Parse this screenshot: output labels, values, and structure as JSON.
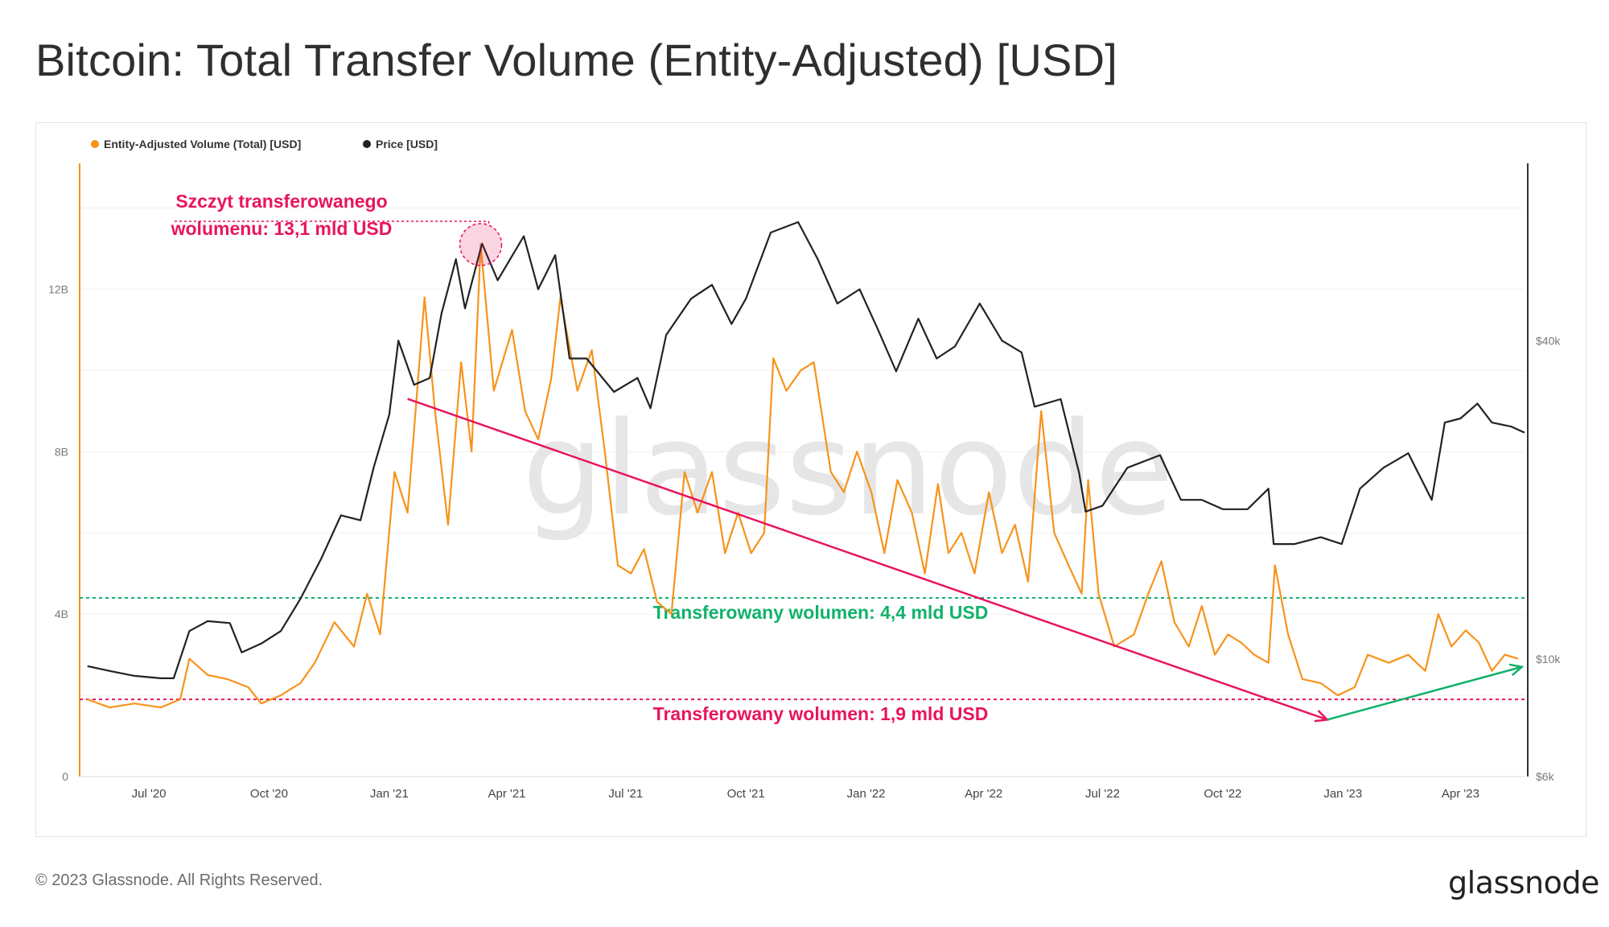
{
  "page": {
    "title": "Bitcoin: Total Transfer Volume (Entity-Adjusted) [USD]",
    "copyright": "© 2023 Glassnode. All Rights Reserved.",
    "logo": "glassnode",
    "watermark": "glassnode"
  },
  "chart_data": {
    "type": "line",
    "title": "Bitcoin: Total Transfer Volume (Entity-Adjusted) [USD]",
    "legend_position": "top-left",
    "grid": true,
    "x_ticks": [
      "Jul '20",
      "Oct '20",
      "Jan '21",
      "Apr '21",
      "Jul '21",
      "Oct '21",
      "Jan '22",
      "Apr '22",
      "Jul '22",
      "Oct '22",
      "Jan '23",
      "Apr '23"
    ],
    "xlim": [
      "2020-05-09",
      "2023-05-20"
    ],
    "y_left": {
      "ticks": [
        "0",
        "4B",
        "8B",
        "12B"
      ],
      "ylim": [
        0,
        15000000000
      ]
    },
    "y_right": {
      "ticks": [
        "$6k",
        "$10k",
        "$40k"
      ],
      "scale": "log",
      "ylim": [
        6000,
        85000
      ]
    },
    "colors": {
      "volume": "#f7931a",
      "price": "#222222",
      "accent_pink": "#e8155f",
      "accent_green": "#12b26b"
    },
    "series": [
      {
        "name": "Entity-Adjusted Volume (Total) [USD]",
        "axis": "left",
        "color": "#f7931a",
        "points": [
          [
            "2020-05-15",
            1900000000.0
          ],
          [
            "2020-06-01",
            1700000000.0
          ],
          [
            "2020-06-20",
            1800000000.0
          ],
          [
            "2020-07-10",
            1700000000.0
          ],
          [
            "2020-07-25",
            1900000000.0
          ],
          [
            "2020-08-01",
            2900000000.0
          ],
          [
            "2020-08-15",
            2500000000.0
          ],
          [
            "2020-08-30",
            2400000000.0
          ],
          [
            "2020-09-15",
            2200000000.0
          ],
          [
            "2020-09-25",
            1800000000.0
          ],
          [
            "2020-10-10",
            2000000000.0
          ],
          [
            "2020-10-25",
            2300000000.0
          ],
          [
            "2020-11-05",
            2800000000.0
          ],
          [
            "2020-11-20",
            3800000000.0
          ],
          [
            "2020-12-05",
            3200000000.0
          ],
          [
            "2020-12-15",
            4500000000.0
          ],
          [
            "2020-12-25",
            3500000000.0
          ],
          [
            "2021-01-05",
            7500000000.0
          ],
          [
            "2021-01-15",
            6500000000.0
          ],
          [
            "2021-01-28",
            11800000000.0
          ],
          [
            "2021-02-05",
            9000000000.0
          ],
          [
            "2021-02-15",
            6200000000.0
          ],
          [
            "2021-02-25",
            10200000000.0
          ],
          [
            "2021-03-05",
            8000000000.0
          ],
          [
            "2021-03-12",
            13100000000.0
          ],
          [
            "2021-03-22",
            9500000000.0
          ],
          [
            "2021-04-05",
            11000000000.0
          ],
          [
            "2021-04-15",
            9000000000.0
          ],
          [
            "2021-04-25",
            8300000000.0
          ],
          [
            "2021-05-05",
            9800000000.0
          ],
          [
            "2021-05-12",
            11800000000.0
          ],
          [
            "2021-05-25",
            9500000000.0
          ],
          [
            "2021-06-05",
            10500000000.0
          ],
          [
            "2021-06-15",
            8000000000.0
          ],
          [
            "2021-06-25",
            5200000000.0
          ],
          [
            "2021-07-05",
            5000000000.0
          ],
          [
            "2021-07-15",
            5600000000.0
          ],
          [
            "2021-07-25",
            4300000000.0
          ],
          [
            "2021-08-05",
            4000000000.0
          ],
          [
            "2021-08-15",
            7500000000.0
          ],
          [
            "2021-08-25",
            6500000000.0
          ],
          [
            "2021-09-05",
            7500000000.0
          ],
          [
            "2021-09-15",
            5500000000.0
          ],
          [
            "2021-09-25",
            6500000000.0
          ],
          [
            "2021-10-05",
            5500000000.0
          ],
          [
            "2021-10-15",
            6000000000.0
          ],
          [
            "2021-10-22",
            10300000000.0
          ],
          [
            "2021-11-01",
            9500000000.0
          ],
          [
            "2021-11-12",
            10000000000.0
          ],
          [
            "2021-11-22",
            10200000000.0
          ],
          [
            "2021-12-05",
            7500000000.0
          ],
          [
            "2021-12-15",
            7000000000.0
          ],
          [
            "2021-12-25",
            8000000000.0
          ],
          [
            "2022-01-05",
            7000000000.0
          ],
          [
            "2022-01-15",
            5500000000.0
          ],
          [
            "2022-01-25",
            7300000000.0
          ],
          [
            "2022-02-05",
            6500000000.0
          ],
          [
            "2022-02-15",
            5000000000.0
          ],
          [
            "2022-02-25",
            7200000000.0
          ],
          [
            "2022-03-05",
            5500000000.0
          ],
          [
            "2022-03-15",
            6000000000.0
          ],
          [
            "2022-03-25",
            5000000000.0
          ],
          [
            "2022-04-05",
            7000000000.0
          ],
          [
            "2022-04-15",
            5500000000.0
          ],
          [
            "2022-04-25",
            6200000000.0
          ],
          [
            "2022-05-05",
            4800000000.0
          ],
          [
            "2022-05-15",
            9000000000.0
          ],
          [
            "2022-05-25",
            6000000000.0
          ],
          [
            "2022-06-05",
            5200000000.0
          ],
          [
            "2022-06-15",
            4500000000.0
          ],
          [
            "2022-06-20",
            7300000000.0
          ],
          [
            "2022-06-28",
            4500000000.0
          ],
          [
            "2022-07-10",
            3200000000.0
          ],
          [
            "2022-07-25",
            3500000000.0
          ],
          [
            "2022-08-05",
            4500000000.0
          ],
          [
            "2022-08-15",
            5300000000.0
          ],
          [
            "2022-08-25",
            3800000000.0
          ],
          [
            "2022-09-05",
            3200000000.0
          ],
          [
            "2022-09-15",
            4200000000.0
          ],
          [
            "2022-09-25",
            3000000000.0
          ],
          [
            "2022-10-05",
            3500000000.0
          ],
          [
            "2022-10-15",
            3300000000.0
          ],
          [
            "2022-10-25",
            3000000000.0
          ],
          [
            "2022-11-05",
            2800000000.0
          ],
          [
            "2022-11-10",
            5200000000.0
          ],
          [
            "2022-11-20",
            3500000000.0
          ],
          [
            "2022-12-01",
            2400000000.0
          ],
          [
            "2022-12-15",
            2300000000.0
          ],
          [
            "2022-12-28",
            2000000000.0
          ],
          [
            "2023-01-10",
            2200000000.0
          ],
          [
            "2023-01-20",
            3000000000.0
          ],
          [
            "2023-02-05",
            2800000000.0
          ],
          [
            "2023-02-20",
            3000000000.0
          ],
          [
            "2023-03-05",
            2600000000.0
          ],
          [
            "2023-03-15",
            4000000000.0
          ],
          [
            "2023-03-25",
            3200000000.0
          ],
          [
            "2023-04-05",
            3600000000.0
          ],
          [
            "2023-04-15",
            3300000000.0
          ],
          [
            "2023-04-25",
            2600000000.0
          ],
          [
            "2023-05-05",
            3000000000.0
          ],
          [
            "2023-05-15",
            2900000000.0
          ]
        ]
      },
      {
        "name": "Price [USD]",
        "axis": "right",
        "color": "#222222",
        "points": [
          [
            "2020-05-15",
            9700
          ],
          [
            "2020-06-01",
            9500
          ],
          [
            "2020-06-20",
            9300
          ],
          [
            "2020-07-10",
            9200
          ],
          [
            "2020-07-20",
            9200
          ],
          [
            "2020-08-01",
            11300
          ],
          [
            "2020-08-15",
            11800
          ],
          [
            "2020-09-01",
            11700
          ],
          [
            "2020-09-10",
            10300
          ],
          [
            "2020-09-25",
            10700
          ],
          [
            "2020-10-10",
            11300
          ],
          [
            "2020-10-25",
            13000
          ],
          [
            "2020-11-10",
            15500
          ],
          [
            "2020-11-25",
            18700
          ],
          [
            "2020-12-10",
            18300
          ],
          [
            "2020-12-20",
            23000
          ],
          [
            "2021-01-01",
            29000
          ],
          [
            "2021-01-08",
            40000
          ],
          [
            "2021-01-20",
            33000
          ],
          [
            "2021-02-01",
            34000
          ],
          [
            "2021-02-10",
            45000
          ],
          [
            "2021-02-21",
            57000
          ],
          [
            "2021-02-28",
            46000
          ],
          [
            "2021-03-13",
            61000
          ],
          [
            "2021-03-25",
            52000
          ],
          [
            "2021-04-14",
            63000
          ],
          [
            "2021-04-25",
            50000
          ],
          [
            "2021-05-08",
            58000
          ],
          [
            "2021-05-19",
            37000
          ],
          [
            "2021-06-01",
            37000
          ],
          [
            "2021-06-22",
            32000
          ],
          [
            "2021-07-10",
            34000
          ],
          [
            "2021-07-20",
            29800
          ],
          [
            "2021-08-01",
            41000
          ],
          [
            "2021-08-20",
            48000
          ],
          [
            "2021-09-05",
            51000
          ],
          [
            "2021-09-20",
            43000
          ],
          [
            "2021-10-01",
            48000
          ],
          [
            "2021-10-20",
            64000
          ],
          [
            "2021-11-10",
            67000
          ],
          [
            "2021-11-25",
            57000
          ],
          [
            "2021-12-10",
            47000
          ],
          [
            "2021-12-27",
            50000
          ],
          [
            "2022-01-10",
            42000
          ],
          [
            "2022-01-24",
            35000
          ],
          [
            "2022-02-10",
            44000
          ],
          [
            "2022-02-24",
            37000
          ],
          [
            "2022-03-10",
            39000
          ],
          [
            "2022-03-29",
            47000
          ],
          [
            "2022-04-15",
            40000
          ],
          [
            "2022-04-30",
            38000
          ],
          [
            "2022-05-10",
            30000
          ],
          [
            "2022-05-30",
            31000
          ],
          [
            "2022-06-13",
            22500
          ],
          [
            "2022-06-18",
            19000
          ],
          [
            "2022-07-01",
            19500
          ],
          [
            "2022-07-20",
            23000
          ],
          [
            "2022-08-14",
            24300
          ],
          [
            "2022-08-30",
            20000
          ],
          [
            "2022-09-15",
            20000
          ],
          [
            "2022-10-01",
            19200
          ],
          [
            "2022-10-20",
            19200
          ],
          [
            "2022-11-05",
            21000
          ],
          [
            "2022-11-09",
            16500
          ],
          [
            "2022-11-25",
            16500
          ],
          [
            "2022-12-15",
            17000
          ],
          [
            "2022-12-31",
            16500
          ],
          [
            "2023-01-14",
            21000
          ],
          [
            "2023-02-01",
            23000
          ],
          [
            "2023-02-20",
            24500
          ],
          [
            "2023-03-10",
            20000
          ],
          [
            "2023-03-20",
            28000
          ],
          [
            "2023-04-01",
            28500
          ],
          [
            "2023-04-14",
            30400
          ],
          [
            "2023-04-25",
            28000
          ],
          [
            "2023-05-10",
            27500
          ],
          [
            "2023-05-20",
            26800
          ]
        ]
      }
    ],
    "annotations": [
      {
        "type": "label",
        "text_lines": [
          "Szczyt transferowanego",
          "wolumenu: 13,1 mld USD"
        ],
        "color": "#e8155f",
        "at": [
          "2021-03-12",
          13100000000.0
        ]
      },
      {
        "type": "hline",
        "text": "Transferowany wolumen: 4,4 mld USD",
        "value": 4400000000.0,
        "color": "#12b26b"
      },
      {
        "type": "hline",
        "text": "Transferowany wolumen: 1,9 mld USD",
        "value": 1900000000.0,
        "color": "#e8155f"
      },
      {
        "type": "arrow",
        "color": "#e8155f",
        "from": [
          "2021-01-15",
          9300000000.0
        ],
        "to": [
          "2022-12-20",
          1400000000.0
        ]
      },
      {
        "type": "arrow",
        "color": "#12b26b",
        "from": [
          "2022-12-20",
          1400000000.0
        ],
        "to": [
          "2023-05-18",
          2700000000.0
        ]
      }
    ]
  }
}
